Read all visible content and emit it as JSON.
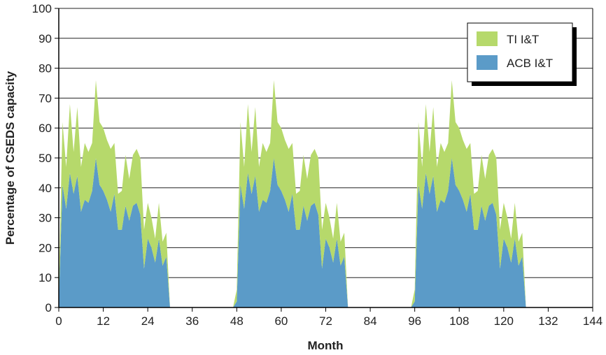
{
  "chart_data": {
    "type": "area",
    "stacked": true,
    "xlabel": "Month",
    "ylabel": "Percentage of CSEDS capacity",
    "xlim": [
      0,
      144
    ],
    "ylim": [
      0,
      100
    ],
    "xticks": [
      0,
      12,
      24,
      36,
      48,
      60,
      72,
      84,
      96,
      108,
      120,
      132,
      144
    ],
    "yticks": [
      0,
      10,
      20,
      30,
      40,
      50,
      60,
      70,
      80,
      90,
      100
    ],
    "grid": "horizontal",
    "legend_position": "top-right",
    "x": [
      0,
      1,
      2,
      3,
      4,
      5,
      6,
      7,
      8,
      9,
      10,
      11,
      12,
      13,
      14,
      15,
      16,
      17,
      18,
      19,
      20,
      21,
      22,
      23,
      24,
      25,
      26,
      27,
      28,
      29,
      30,
      31,
      32,
      33,
      34,
      35,
      36,
      37,
      38,
      39,
      40,
      41,
      42,
      43,
      44,
      45,
      46,
      47,
      48,
      49,
      50,
      51,
      52,
      53,
      54,
      55,
      56,
      57,
      58,
      59,
      60,
      61,
      62,
      63,
      64,
      65,
      66,
      67,
      68,
      69,
      70,
      71,
      72,
      73,
      74,
      75,
      76,
      77,
      78,
      79,
      80,
      81,
      82,
      83,
      84,
      85,
      86,
      87,
      88,
      89,
      90,
      91,
      92,
      93,
      94,
      95,
      96,
      97,
      98,
      99,
      100,
      101,
      102,
      103,
      104,
      105,
      106,
      107,
      108,
      109,
      110,
      111,
      112,
      113,
      114,
      115,
      116,
      117,
      118,
      119,
      120,
      121,
      122,
      123,
      124,
      125,
      126,
      127,
      128,
      129,
      130,
      131,
      132,
      133,
      134,
      135,
      136,
      137,
      138,
      139,
      140,
      141,
      142,
      143,
      144
    ],
    "series": [
      {
        "name": "ACB I&T",
        "color": "#5b9bc8",
        "values": [
          2,
          41,
          33,
          45,
          38,
          44,
          32,
          36,
          35,
          39,
          50,
          41,
          39,
          36,
          32,
          38,
          26,
          26,
          34,
          29,
          34,
          35,
          31,
          13,
          23,
          20,
          15,
          23,
          14,
          17,
          0,
          0,
          0,
          0,
          0,
          0,
          0,
          0,
          0,
          0,
          0,
          0,
          0,
          0,
          0,
          0,
          0,
          0,
          2,
          41,
          33,
          45,
          38,
          44,
          32,
          36,
          35,
          39,
          50,
          41,
          39,
          36,
          32,
          38,
          26,
          26,
          34,
          29,
          34,
          35,
          31,
          13,
          23,
          20,
          15,
          23,
          14,
          17,
          0,
          0,
          0,
          0,
          0,
          0,
          0,
          0,
          0,
          0,
          0,
          0,
          0,
          0,
          0,
          0,
          0,
          0,
          2,
          41,
          33,
          45,
          38,
          44,
          32,
          36,
          35,
          39,
          50,
          41,
          39,
          36,
          32,
          38,
          26,
          26,
          34,
          29,
          34,
          35,
          31,
          13,
          23,
          20,
          15,
          23,
          14,
          17,
          0,
          0,
          0,
          0,
          0,
          0,
          0,
          0,
          0,
          0,
          0,
          0,
          0,
          0,
          0,
          0,
          0,
          0,
          0
        ]
      },
      {
        "name": "TI I&T",
        "color": "#b6d96b",
        "values": [
          4,
          21,
          14,
          23,
          14,
          23,
          15,
          19,
          17,
          16,
          26,
          21,
          21,
          20,
          21,
          17,
          12,
          13,
          17,
          14,
          17,
          18,
          19,
          13,
          12,
          10,
          8,
          12,
          8,
          8,
          0,
          0,
          0,
          0,
          0,
          0,
          0,
          0,
          0,
          0,
          0,
          0,
          0,
          0,
          0,
          0,
          0,
          0,
          4,
          21,
          14,
          23,
          14,
          23,
          15,
          19,
          17,
          16,
          26,
          21,
          21,
          20,
          21,
          17,
          12,
          13,
          17,
          14,
          17,
          18,
          19,
          13,
          12,
          10,
          8,
          12,
          8,
          8,
          0,
          0,
          0,
          0,
          0,
          0,
          0,
          0,
          0,
          0,
          0,
          0,
          0,
          0,
          0,
          0,
          0,
          0,
          4,
          21,
          14,
          23,
          14,
          23,
          15,
          19,
          17,
          16,
          26,
          21,
          21,
          20,
          21,
          17,
          12,
          13,
          17,
          14,
          17,
          18,
          19,
          13,
          12,
          10,
          8,
          12,
          8,
          8,
          0,
          0,
          0,
          0,
          0,
          0,
          0,
          0,
          0,
          0,
          0,
          0,
          0,
          0,
          0,
          0,
          0,
          0,
          0
        ]
      }
    ],
    "legend": [
      "TI I&T",
      "ACB I&T"
    ]
  }
}
